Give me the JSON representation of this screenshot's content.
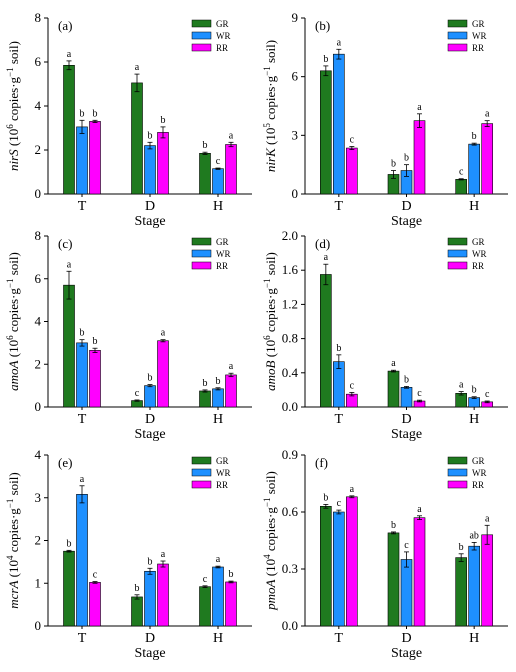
{
  "colors": {
    "GR": "#1f7a1f",
    "WR": "#1e90ff",
    "RR": "#ff00ff"
  },
  "chart_data": [
    {
      "type": "bar",
      "panel": "(a)",
      "xlabel": "Stage",
      "ylabel": [
        "nirS",
        " (10",
        "6",
        " copies·g",
        "−1",
        " soil)"
      ],
      "categories": [
        "T",
        "D",
        "H"
      ],
      "legend": [
        "GR",
        "WR",
        "RR"
      ],
      "ylim": [
        0,
        8
      ],
      "yticks": [
        0,
        2,
        4,
        6,
        8
      ],
      "series": [
        {
          "name": "GR",
          "values": [
            5.85,
            5.05,
            1.85
          ],
          "errors": [
            0.2,
            0.4,
            0.05
          ],
          "letters": [
            "a",
            "a",
            "b"
          ]
        },
        {
          "name": "WR",
          "values": [
            3.05,
            2.2,
            1.15
          ],
          "errors": [
            0.3,
            0.15,
            0.03
          ],
          "letters": [
            "b",
            "b",
            "c"
          ]
        },
        {
          "name": "RR",
          "values": [
            3.3,
            2.8,
            2.25
          ],
          "errors": [
            0.05,
            0.25,
            0.1
          ],
          "letters": [
            "b",
            "b",
            "a"
          ]
        }
      ]
    },
    {
      "type": "bar",
      "panel": "(b)",
      "xlabel": "Stage",
      "ylabel": [
        "nirK",
        " (10",
        "5",
        " copies·g",
        "−1",
        " soil)"
      ],
      "categories": [
        "T",
        "D",
        "H"
      ],
      "legend": [
        "GR",
        "WR",
        "RR"
      ],
      "ylim": [
        0,
        9
      ],
      "yticks": [
        0,
        3,
        6,
        9
      ],
      "series": [
        {
          "name": "GR",
          "values": [
            6.3,
            1.0,
            0.75
          ],
          "errors": [
            0.25,
            0.2,
            0.03
          ],
          "letters": [
            "b",
            "b",
            "c"
          ]
        },
        {
          "name": "WR",
          "values": [
            7.15,
            1.2,
            2.55
          ],
          "errors": [
            0.25,
            0.3,
            0.05
          ],
          "letters": [
            "a",
            "b",
            "b"
          ]
        },
        {
          "name": "RR",
          "values": [
            2.35,
            3.75,
            3.6
          ],
          "errors": [
            0.08,
            0.35,
            0.15
          ],
          "letters": [
            "c",
            "a",
            "a"
          ]
        }
      ]
    },
    {
      "type": "bar",
      "panel": "(c)",
      "xlabel": "Stage",
      "ylabel": [
        "amoA",
        " (10",
        "6",
        " copies·g",
        "−1",
        " soil)"
      ],
      "categories": [
        "T",
        "D",
        "H"
      ],
      "legend": [
        "GR",
        "WR",
        "RR"
      ],
      "ylim": [
        0,
        8
      ],
      "yticks": [
        0,
        2,
        4,
        6,
        8
      ],
      "series": [
        {
          "name": "GR",
          "values": [
            5.7,
            0.3,
            0.75
          ],
          "errors": [
            0.65,
            0.03,
            0.05
          ],
          "letters": [
            "a",
            "c",
            "b"
          ]
        },
        {
          "name": "WR",
          "values": [
            3.0,
            1.0,
            0.85
          ],
          "errors": [
            0.15,
            0.05,
            0.05
          ],
          "letters": [
            "b",
            "b",
            "b"
          ]
        },
        {
          "name": "RR",
          "values": [
            2.65,
            3.1,
            1.5
          ],
          "errors": [
            0.1,
            0.05,
            0.08
          ],
          "letters": [
            "b",
            "a",
            "a"
          ]
        }
      ]
    },
    {
      "type": "bar",
      "panel": "(d)",
      "xlabel": "Stage",
      "ylabel": [
        "amoB",
        " (10",
        "6",
        " copies·g",
        "−1",
        " soil)"
      ],
      "categories": [
        "T",
        "D",
        "H"
      ],
      "legend": [
        "GR",
        "WR",
        "RR"
      ],
      "ylim": [
        0,
        2.0
      ],
      "yticks": [
        0,
        0.4,
        0.8,
        1.2,
        1.6,
        2.0
      ],
      "series": [
        {
          "name": "GR",
          "values": [
            1.55,
            0.42,
            0.16
          ],
          "errors": [
            0.12,
            0.01,
            0.02
          ],
          "letters": [
            "a",
            "a",
            "a"
          ]
        },
        {
          "name": "WR",
          "values": [
            0.53,
            0.23,
            0.11
          ],
          "errors": [
            0.08,
            0.01,
            0.01
          ],
          "letters": [
            "b",
            "b",
            "b"
          ]
        },
        {
          "name": "RR",
          "values": [
            0.15,
            0.07,
            0.06
          ],
          "errors": [
            0.02,
            0.01,
            0.01
          ],
          "letters": [
            "c",
            "c",
            "c"
          ]
        }
      ]
    },
    {
      "type": "bar",
      "panel": "(e)",
      "xlabel": "Stage",
      "ylabel": [
        "mcrA",
        " (10",
        "4",
        " copies·g",
        "−1",
        " soil)"
      ],
      "categories": [
        "T",
        "D",
        "H"
      ],
      "legend": [
        "GR",
        "WR",
        "RR"
      ],
      "ylim": [
        0,
        4
      ],
      "yticks": [
        0,
        1,
        2,
        3,
        4
      ],
      "series": [
        {
          "name": "GR",
          "values": [
            1.75,
            0.68,
            0.92
          ],
          "errors": [
            0.02,
            0.05,
            0.02
          ],
          "letters": [
            "b",
            "b",
            "c"
          ]
        },
        {
          "name": "WR",
          "values": [
            3.08,
            1.28,
            1.38
          ],
          "errors": [
            0.2,
            0.07,
            0.02
          ],
          "letters": [
            "a",
            "b",
            "a"
          ]
        },
        {
          "name": "RR",
          "values": [
            1.02,
            1.45,
            1.03
          ],
          "errors": [
            0.02,
            0.07,
            0.02
          ],
          "letters": [
            "c",
            "a",
            "b"
          ]
        }
      ]
    },
    {
      "type": "bar",
      "panel": "(f)",
      "xlabel": "Stage",
      "ylabel": [
        "pmoA",
        " (10",
        "4",
        " copies·g",
        "−1",
        " soil)"
      ],
      "categories": [
        "T",
        "D",
        "H"
      ],
      "legend": [
        "GR",
        "WR",
        "RR"
      ],
      "ylim": [
        0,
        0.9
      ],
      "yticks": [
        0.0,
        0.3,
        0.6,
        0.9
      ],
      "series": [
        {
          "name": "GR",
          "values": [
            0.63,
            0.49,
            0.36
          ],
          "errors": [
            0.01,
            0.005,
            0.02
          ],
          "letters": [
            "b",
            "b",
            "b"
          ]
        },
        {
          "name": "WR",
          "values": [
            0.6,
            0.35,
            0.42
          ],
          "errors": [
            0.01,
            0.04,
            0.02
          ],
          "letters": [
            "c",
            "c",
            "ab"
          ]
        },
        {
          "name": "RR",
          "values": [
            0.68,
            0.57,
            0.48
          ],
          "errors": [
            0.005,
            0.01,
            0.05
          ],
          "letters": [
            "a",
            "a",
            "a"
          ]
        }
      ]
    }
  ]
}
